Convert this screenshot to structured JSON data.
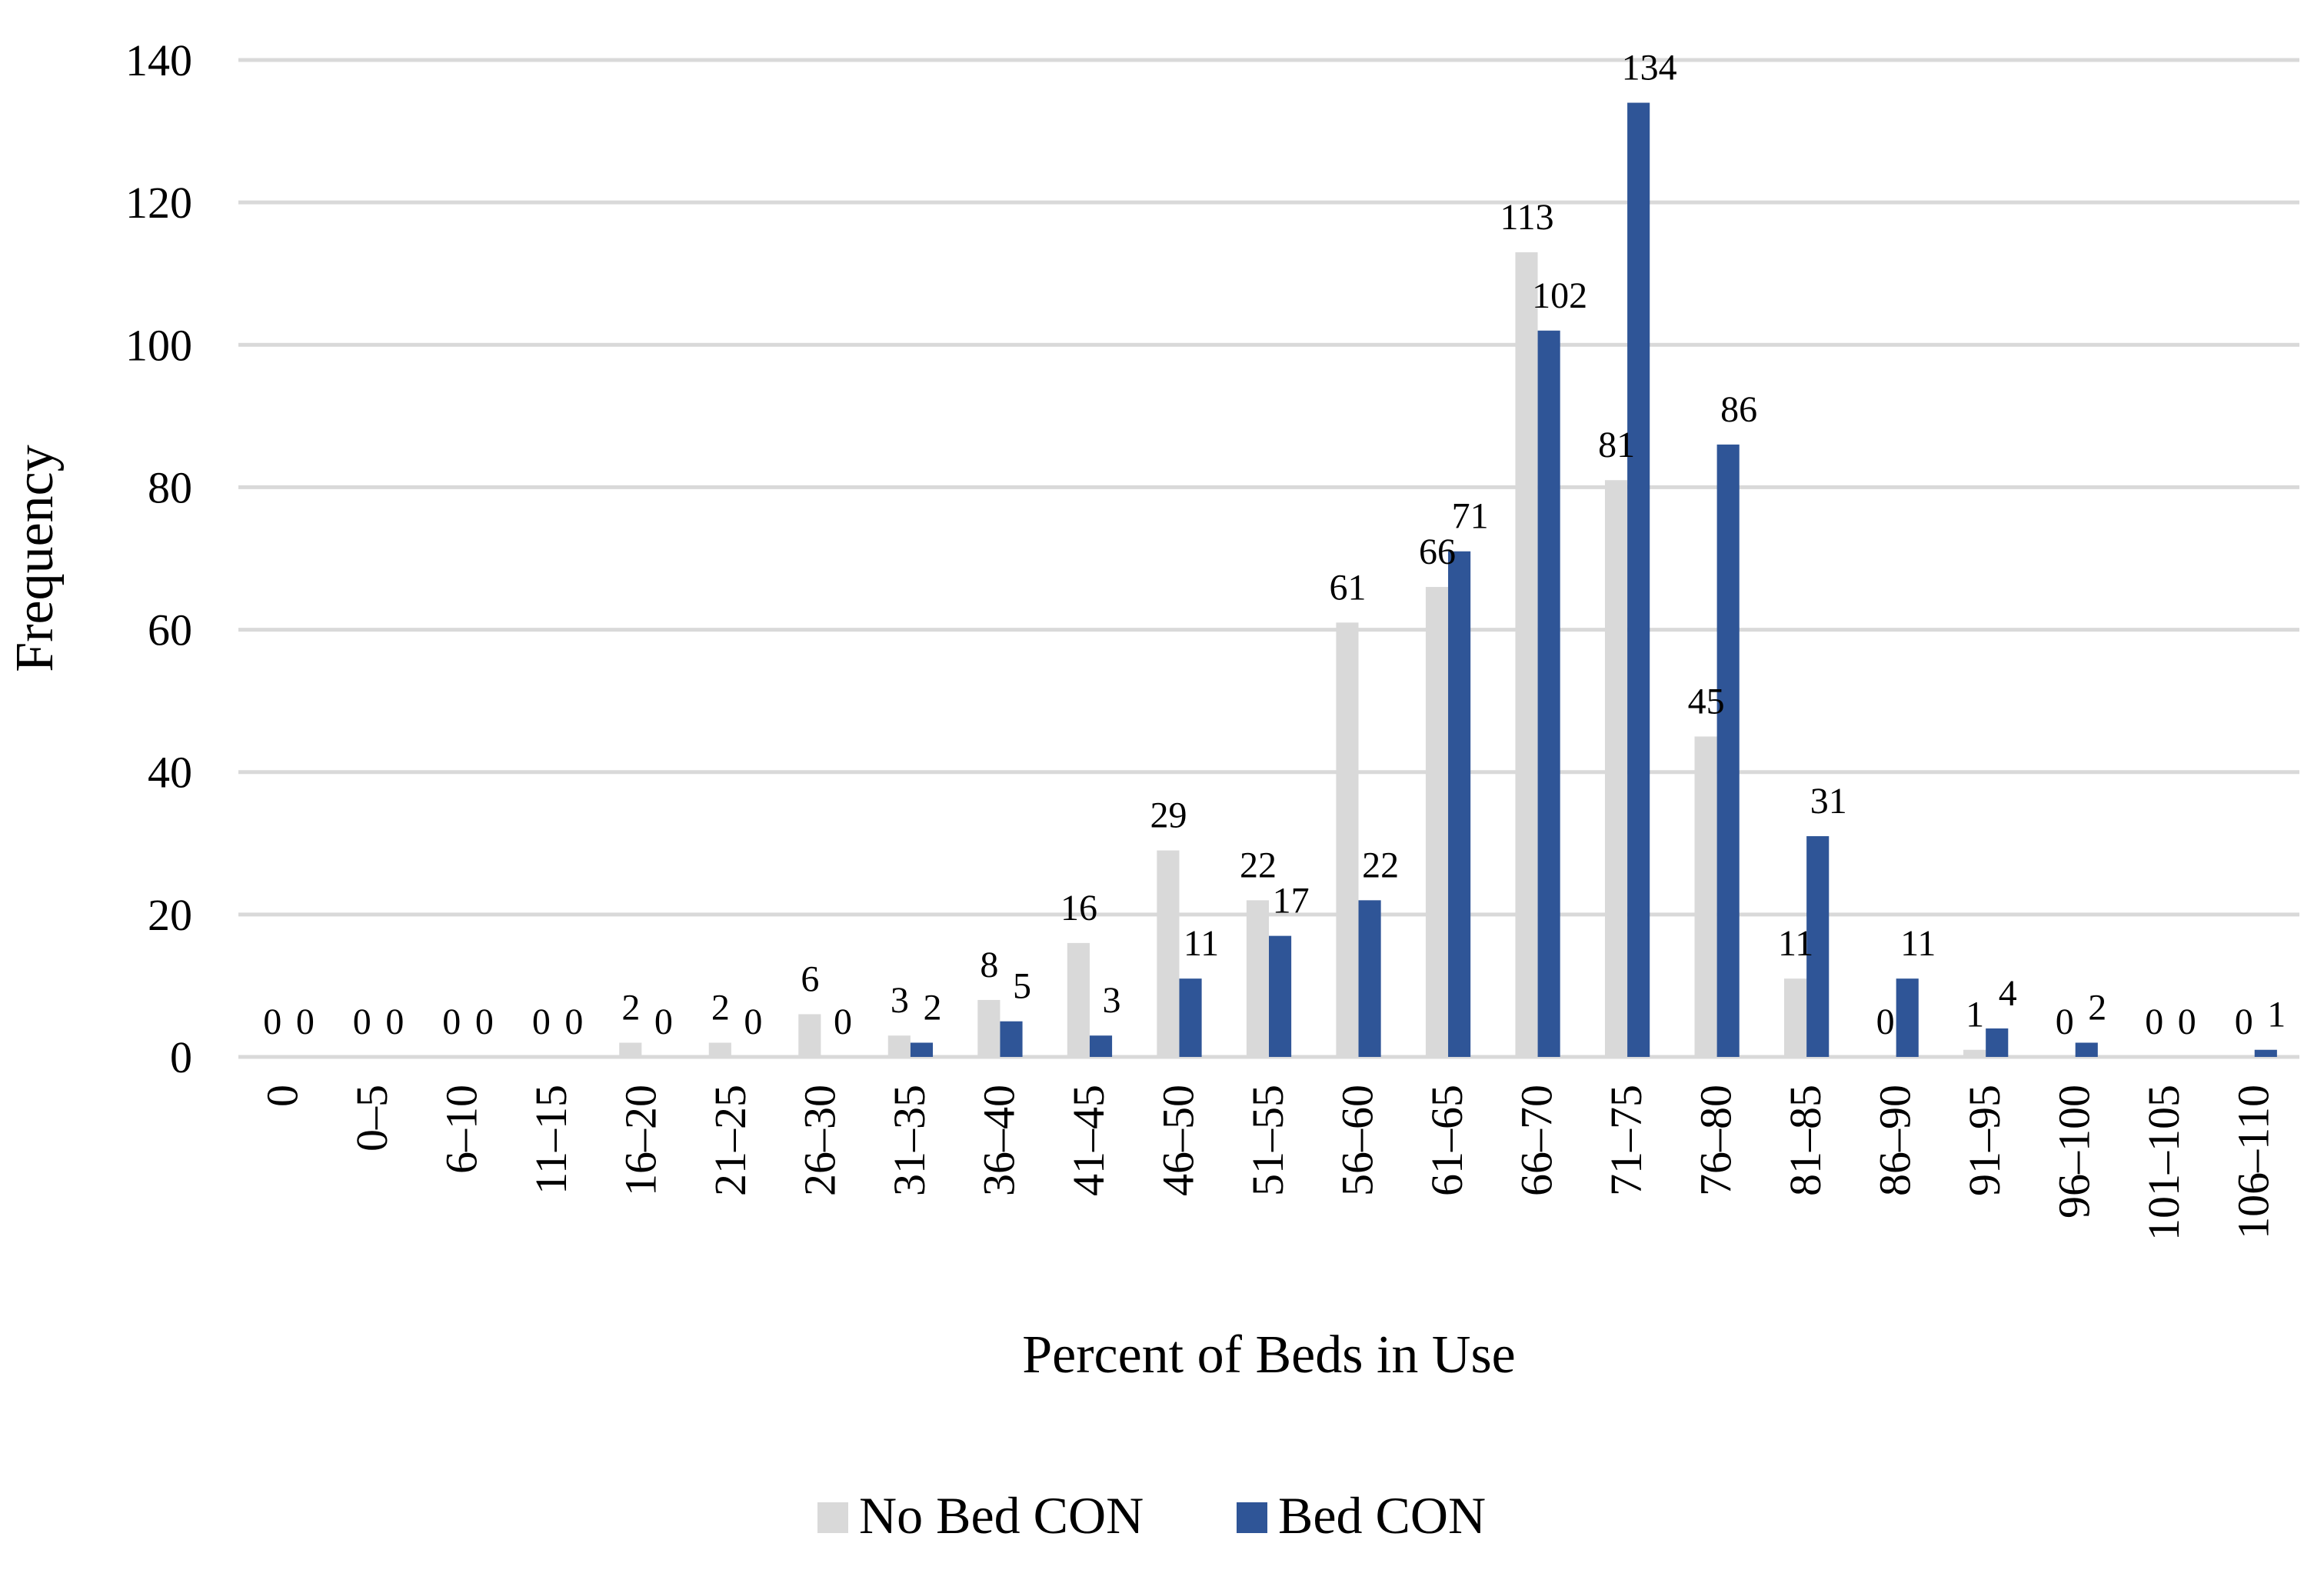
{
  "chart_data": {
    "type": "bar",
    "title": "",
    "xlabel": "Percent of Beds in Use",
    "ylabel": "Frequency",
    "ylim": [
      0,
      140
    ],
    "ytick_step": 20,
    "yticks": [
      "0",
      "20",
      "40",
      "60",
      "80",
      "100",
      "120",
      "140"
    ],
    "grid": true,
    "legend_position": "bottom",
    "categories": [
      "0",
      "0–5",
      "6–10",
      "11–15",
      "16–20",
      "21–25",
      "26–30",
      "31–35",
      "36–40",
      "41–45",
      "46–50",
      "51–55",
      "56–60",
      "61–65",
      "66–70",
      "71–75",
      "76–80",
      "81–85",
      "86–90",
      "91–95",
      "96–100",
      "101–105",
      "106–110"
    ],
    "series": [
      {
        "name": "No Bed CON",
        "color": "#d9d9d9",
        "values": [
          0,
          0,
          0,
          0,
          2,
          2,
          6,
          3,
          8,
          16,
          29,
          22,
          61,
          66,
          113,
          81,
          45,
          11,
          0,
          1,
          0,
          0,
          0
        ]
      },
      {
        "name": "Bed CON",
        "color": "#2f5597",
        "values": [
          0,
          0,
          0,
          0,
          0,
          0,
          0,
          2,
          5,
          3,
          11,
          17,
          22,
          71,
          102,
          134,
          86,
          31,
          11,
          4,
          2,
          0,
          1
        ]
      }
    ]
  }
}
